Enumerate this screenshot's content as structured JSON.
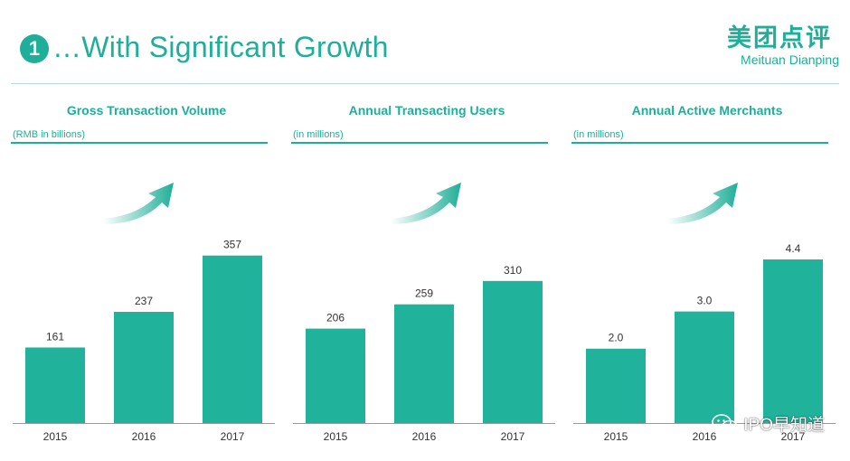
{
  "header": {
    "section_number": "1",
    "title": "…With Significant Growth",
    "logo_cn": "美团点评",
    "logo_en": "Meituan Dianping"
  },
  "colors": {
    "accent": "#1fae98",
    "bar": "#21b29b",
    "text": "#333333",
    "rule": "#1fae98"
  },
  "chart_data": [
    {
      "type": "bar",
      "title": "Gross Transaction Volume",
      "unit": "(RMB in billions)",
      "categories": [
        "2015",
        "2016",
        "2017"
      ],
      "values": [
        161,
        237,
        357
      ],
      "labels": [
        "161",
        "237",
        "357"
      ],
      "ylim": [
        0,
        420
      ]
    },
    {
      "type": "bar",
      "title": "Annual Transacting Users",
      "unit": "(in millions)",
      "categories": [
        "2015",
        "2016",
        "2017"
      ],
      "values": [
        206,
        259,
        310
      ],
      "labels": [
        "206",
        "259",
        "310"
      ],
      "ylim": [
        0,
        430
      ]
    },
    {
      "type": "bar",
      "title": "Annual Active Merchants",
      "unit": "(in millions)",
      "categories": [
        "2015",
        "2016",
        "2017"
      ],
      "values": [
        2.0,
        3.0,
        4.4
      ],
      "labels": [
        "2.0",
        "3.0",
        "4.4"
      ],
      "ylim": [
        0,
        5.3
      ]
    }
  ],
  "watermark": {
    "text": "IPO早知道",
    "icon": "wechat-icon"
  }
}
